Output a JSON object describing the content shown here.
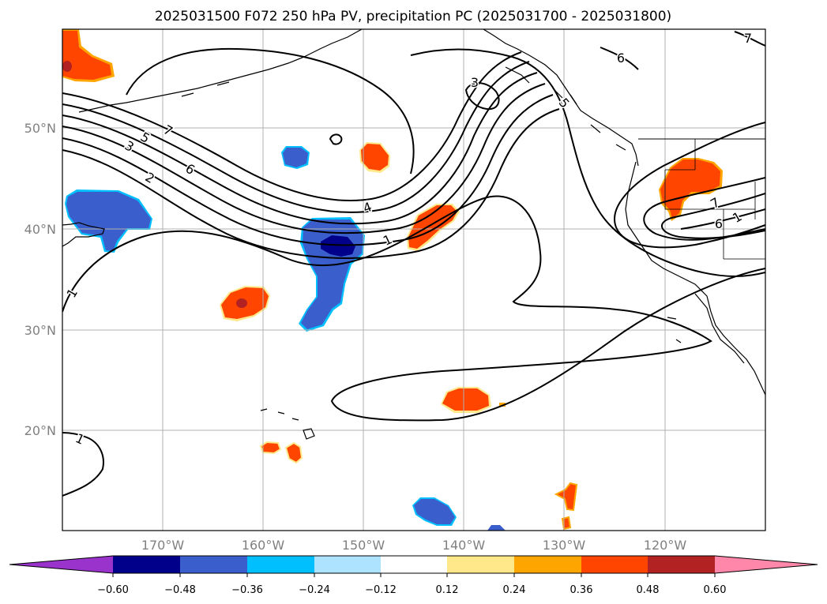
{
  "title": "2025031500 F072 250 hPa PV, precipitation PC (2025031700 - 2025031800)",
  "map": {
    "lat_labels": [
      "50°N",
      "40°N",
      "30°N",
      "20°N"
    ],
    "lon_labels": [
      "170°W",
      "160°W",
      "150°W",
      "140°W",
      "130°W",
      "120°W"
    ],
    "contour_labels": [
      "7",
      "5",
      "3",
      "2",
      "6",
      "4",
      "1",
      "3",
      "5",
      "6",
      "7",
      "1",
      "1",
      "7",
      "6",
      "1"
    ],
    "grid": true
  },
  "colorbar": {
    "tick_labels": [
      "−0.60",
      "−0.48",
      "−0.36",
      "−0.24",
      "−0.12",
      "0.12",
      "0.24",
      "0.36",
      "0.48",
      "0.60"
    ],
    "colors": {
      "under": "#9933cc",
      "bins": [
        "#00008b",
        "#3a5fcd",
        "#00bfff",
        "#aee3ff",
        "#ffffff",
        "#ffe88a",
        "#ffa500",
        "#ff4500",
        "#b22222"
      ],
      "over": "#ff88aa"
    }
  },
  "colors": {
    "pos_outer": "#ffa500",
    "pos_main": "#ff4500",
    "pos_core": "#b22222",
    "neg_outer": "#00bfff",
    "neg_main": "#3a5fcd",
    "neg_core": "#00008b",
    "grid": "#b0b0b0",
    "axis_text": "#808080"
  }
}
